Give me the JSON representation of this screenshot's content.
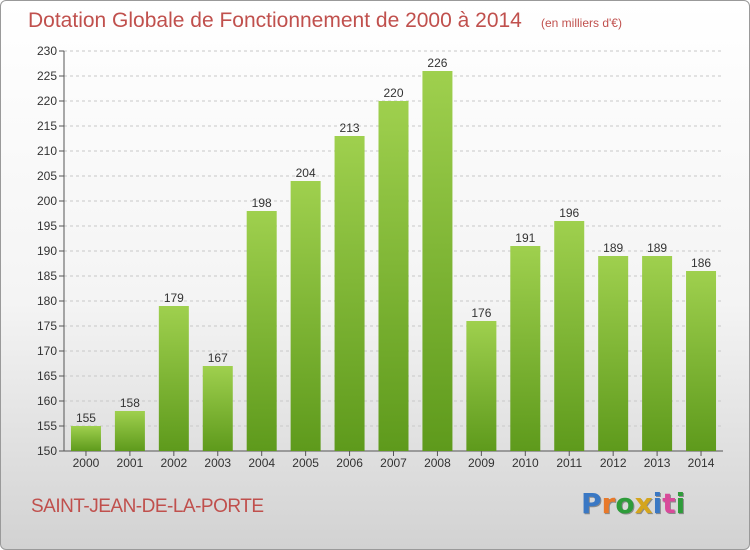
{
  "header": {
    "title": "Dotation Globale de Fonctionnement de 2000 à 2014",
    "subtitle": "(en milliers d'€)"
  },
  "footer": {
    "place": "SAINT-JEAN-DE-LA-PORTE",
    "logo": "Proxiti",
    "logo_colors": [
      "#3a78c4",
      "#e8792a",
      "#2e9c3a",
      "#d4a51e",
      "#3a78c4",
      "#d84a9a",
      "#2e9c3a"
    ]
  },
  "chart_data": {
    "type": "bar",
    "title": "Dotation Globale de Fonctionnement de 2000 à 2014",
    "subtitle": "(en milliers d'€)",
    "categories": [
      "2000",
      "2001",
      "2002",
      "2003",
      "2004",
      "2005",
      "2006",
      "2007",
      "2008",
      "2009",
      "2010",
      "2011",
      "2012",
      "2013",
      "2014"
    ],
    "values": [
      155,
      158,
      179,
      167,
      198,
      204,
      213,
      220,
      226,
      176,
      191,
      196,
      189,
      189,
      186
    ],
    "ylim": [
      150,
      230
    ],
    "yticks": [
      150,
      155,
      160,
      165,
      170,
      175,
      180,
      185,
      190,
      195,
      200,
      205,
      210,
      215,
      220,
      225,
      230
    ],
    "grid": true,
    "bar_color_top": "#9fd04e",
    "bar_color_bottom": "#5e9a1c"
  }
}
